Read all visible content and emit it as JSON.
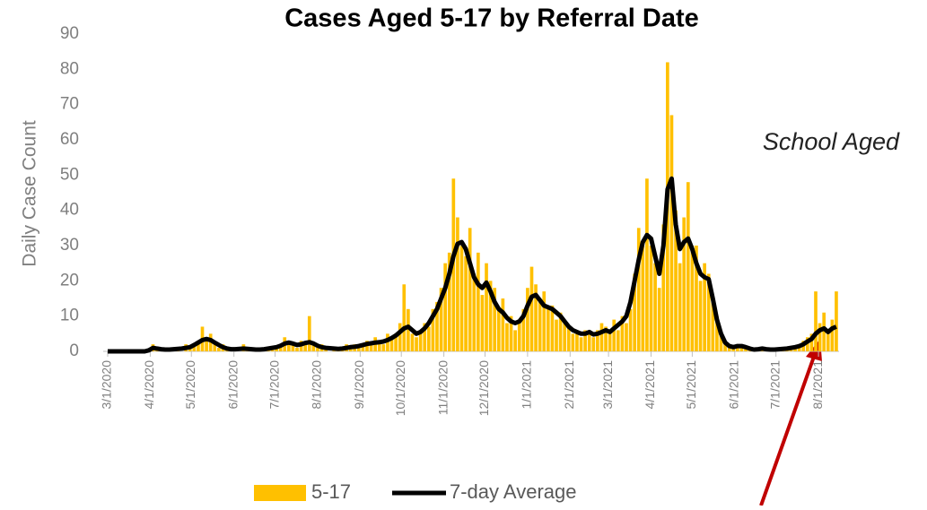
{
  "chart_data": {
    "type": "bar_line",
    "title": "Cases Aged 5-17 by Referral Date",
    "y_label": "Daily Case Count",
    "annotation": "School Aged",
    "ylim": [
      0,
      90
    ],
    "yticks": [
      0,
      10,
      20,
      30,
      40,
      50,
      60,
      70,
      80,
      90
    ],
    "xlim": [
      0,
      533
    ],
    "xticks": [
      {
        "value": 0,
        "label": "3/1/2020"
      },
      {
        "value": 31,
        "label": "4/1/2020"
      },
      {
        "value": 61,
        "label": "5/1/2020"
      },
      {
        "value": 92,
        "label": "6/1/2020"
      },
      {
        "value": 122,
        "label": "7/1/2020"
      },
      {
        "value": 153,
        "label": "8/1/2020"
      },
      {
        "value": 184,
        "label": "9/1/2020"
      },
      {
        "value": 214,
        "label": "10/1/2020"
      },
      {
        "value": 245,
        "label": "11/1/2020"
      },
      {
        "value": 275,
        "label": "12/1/2020"
      },
      {
        "value": 306,
        "label": "1/1/2021"
      },
      {
        "value": 337,
        "label": "2/1/2021"
      },
      {
        "value": 365,
        "label": "3/1/2021"
      },
      {
        "value": 396,
        "label": "4/1/2021"
      },
      {
        "value": 426,
        "label": "5/1/2021"
      },
      {
        "value": 457,
        "label": "6/1/2021"
      },
      {
        "value": 487,
        "label": "7/1/2021"
      },
      {
        "value": 518,
        "label": "8/1/2021"
      }
    ],
    "x": [
      0,
      3,
      6,
      9,
      12,
      15,
      18,
      21,
      24,
      27,
      30,
      33,
      36,
      39,
      42,
      45,
      48,
      51,
      54,
      57,
      60,
      63,
      66,
      69,
      72,
      75,
      78,
      81,
      84,
      87,
      90,
      93,
      96,
      99,
      102,
      105,
      108,
      111,
      114,
      117,
      120,
      123,
      126,
      129,
      132,
      135,
      138,
      141,
      144,
      147,
      150,
      153,
      156,
      159,
      162,
      165,
      168,
      171,
      174,
      177,
      180,
      183,
      186,
      189,
      192,
      195,
      198,
      201,
      204,
      207,
      210,
      213,
      216,
      219,
      222,
      225,
      228,
      231,
      234,
      237,
      240,
      243,
      246,
      249,
      252,
      255,
      258,
      261,
      264,
      267,
      270,
      273,
      276,
      279,
      282,
      285,
      288,
      291,
      294,
      297,
      300,
      303,
      306,
      309,
      312,
      315,
      318,
      321,
      324,
      327,
      330,
      333,
      336,
      339,
      342,
      345,
      348,
      351,
      354,
      357,
      360,
      363,
      366,
      369,
      372,
      375,
      378,
      381,
      384,
      387,
      390,
      393,
      396,
      399,
      402,
      405,
      408,
      411,
      414,
      417,
      420,
      423,
      426,
      429,
      432,
      435,
      438,
      441,
      444,
      447,
      450,
      453,
      456,
      459,
      462,
      465,
      468,
      471,
      474,
      477,
      480,
      483,
      486,
      489,
      492,
      495,
      498,
      501,
      504,
      507,
      510,
      513,
      516,
      519,
      522,
      525,
      528,
      531
    ],
    "series": [
      {
        "name": "5-17",
        "color": "#ffc000",
        "kind": "bar",
        "values": [
          0,
          0,
          0,
          0,
          0,
          0,
          0,
          0,
          0,
          0,
          0,
          2,
          1,
          0,
          1,
          0,
          1,
          1,
          0,
          2,
          1,
          2,
          3,
          7,
          4,
          5,
          2,
          1,
          2,
          1,
          0,
          1,
          0,
          2,
          1,
          0,
          1,
          0,
          1,
          1,
          1,
          1,
          2,
          4,
          3,
          2,
          1,
          3,
          2,
          10,
          2,
          1,
          2,
          1,
          0,
          1,
          1,
          1,
          2,
          1,
          2,
          1,
          2,
          3,
          2,
          4,
          3,
          2,
          5,
          4,
          5,
          8,
          19,
          12,
          5,
          4,
          6,
          8,
          7,
          12,
          14,
          18,
          25,
          28,
          49,
          38,
          30,
          27,
          35,
          22,
          28,
          16,
          25,
          20,
          18,
          12,
          15,
          8,
          10,
          6,
          9,
          12,
          18,
          24,
          19,
          14,
          17,
          12,
          13,
          9,
          11,
          8,
          7,
          5,
          6,
          4,
          6,
          5,
          4,
          6,
          8,
          7,
          5,
          9,
          6,
          10,
          8,
          12,
          22,
          35,
          30,
          49,
          30,
          25,
          18,
          36,
          82,
          67,
          40,
          25,
          38,
          48,
          30,
          30,
          20,
          25,
          22,
          14,
          10,
          5,
          2,
          2,
          1,
          2,
          2,
          1,
          1,
          0,
          1,
          1,
          1,
          0,
          1,
          0,
          1,
          1,
          1,
          1,
          2,
          3,
          4,
          5,
          17,
          8,
          11,
          6,
          9,
          17
        ]
      },
      {
        "name": "7-day Average",
        "color": "#000000",
        "kind": "line",
        "values": [
          0,
          0,
          0,
          0,
          0,
          0,
          0,
          0,
          0,
          0,
          0.3,
          1,
          0.8,
          0.6,
          0.5,
          0.5,
          0.6,
          0.7,
          0.8,
          1,
          1.2,
          1.8,
          2.5,
          3.2,
          3.5,
          3.2,
          2.5,
          1.8,
          1.2,
          0.8,
          0.6,
          0.6,
          0.7,
          0.8,
          0.7,
          0.6,
          0.5,
          0.5,
          0.6,
          0.8,
          1,
          1.2,
          1.6,
          2.2,
          2.5,
          2.2,
          1.8,
          2,
          2.4,
          2.6,
          2.2,
          1.6,
          1.2,
          1,
          0.9,
          0.8,
          0.7,
          0.8,
          1,
          1.2,
          1.3,
          1.5,
          1.8,
          2.1,
          2.3,
          2.5,
          2.6,
          2.8,
          3.2,
          3.8,
          4.5,
          5.5,
          6.5,
          7,
          6,
          5,
          5.5,
          6.5,
          8,
          10,
          12,
          15,
          18,
          22,
          27,
          30.5,
          31,
          29,
          25,
          21,
          19,
          18,
          19.5,
          17,
          14,
          12,
          11,
          9.5,
          8.5,
          8,
          8.5,
          10,
          13,
          15.5,
          16,
          14.5,
          13,
          12.5,
          12,
          11,
          10,
          8.5,
          7,
          6,
          5.5,
          5,
          5,
          5.5,
          4.8,
          5,
          5.5,
          6,
          5.5,
          6.5,
          7.5,
          8.5,
          10,
          14,
          20,
          26,
          31,
          33,
          32,
          27,
          22,
          30,
          46,
          49,
          36,
          29,
          31,
          32,
          29,
          25,
          22,
          21,
          20.5,
          15,
          9,
          5,
          2.5,
          1.5,
          1.2,
          1.5,
          1.5,
          1.2,
          0.8,
          0.5,
          0.6,
          0.8,
          0.6,
          0.5,
          0.5,
          0.6,
          0.7,
          0.8,
          1,
          1.2,
          1.5,
          2,
          2.8,
          3.5,
          5,
          6,
          6.5,
          5.5,
          6.5,
          7
        ]
      }
    ]
  }
}
